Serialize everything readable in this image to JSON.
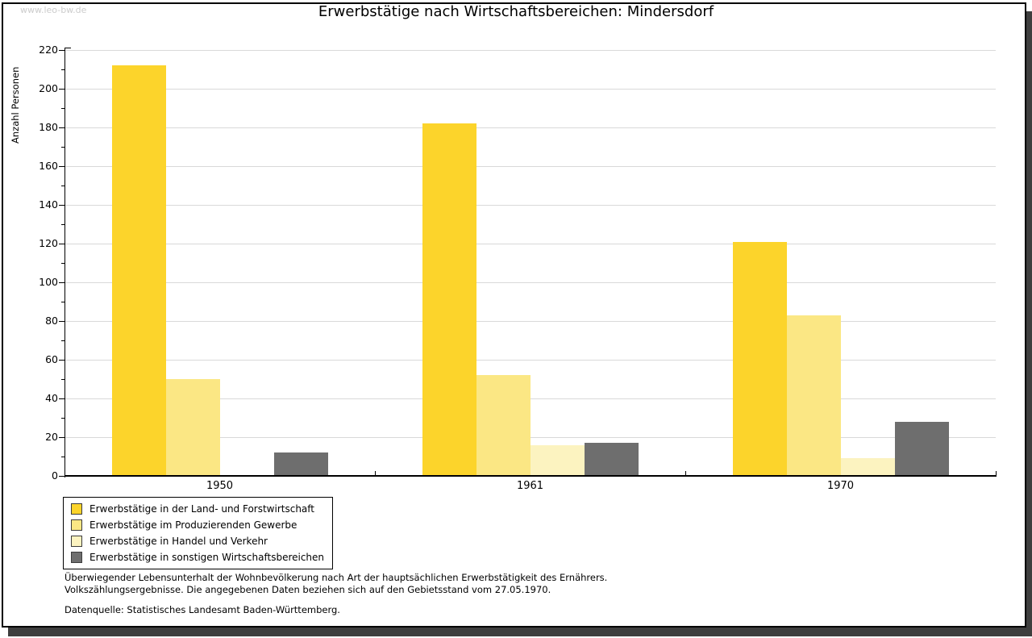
{
  "watermark": "www.leo-bw.de",
  "title": "Erwerbstätige nach Wirtschaftsbereichen: Mindersdorf",
  "chart_data": {
    "type": "bar",
    "title": "Erwerbstätige nach Wirtschaftsbereichen: Mindersdorf",
    "xlabel": "",
    "ylabel": "Anzahl Personen",
    "ylim": [
      0,
      220
    ],
    "ytick_step": 20,
    "ytick_minor_step": 10,
    "grid": true,
    "legend_position": "bottom-left",
    "categories": [
      "1950",
      "1961",
      "1970"
    ],
    "series": [
      {
        "name": "Erwerbstätige in der Land- und Forstwirtschaft",
        "color": "#FCD42B",
        "values": [
          212,
          182,
          121
        ]
      },
      {
        "name": "Erwerbstätige im Produzierenden Gewerbe",
        "color": "#FBE784",
        "values": [
          50,
          52,
          83
        ]
      },
      {
        "name": "Erwerbstätige in Handel und Verkehr",
        "color": "#FCF3C0",
        "values": [
          0,
          16,
          9
        ]
      },
      {
        "name": "Erwerbstätige in sonstigen Wirtschaftsbereichen",
        "color": "#6E6E6E",
        "values": [
          12,
          17,
          28
        ]
      }
    ]
  },
  "footnotes": {
    "line1": "Überwiegender Lebensunterhalt der Wohnbevölkerung nach Art der hauptsächlichen Erwerbstätigkeit des Ernährers.",
    "line2": "Volkszählungsergebnisse. Die angegebenen Daten beziehen sich auf den Gebietsstand vom 27.05.1970.",
    "source": "Datenquelle: Statistisches Landesamt Baden-Württemberg."
  }
}
